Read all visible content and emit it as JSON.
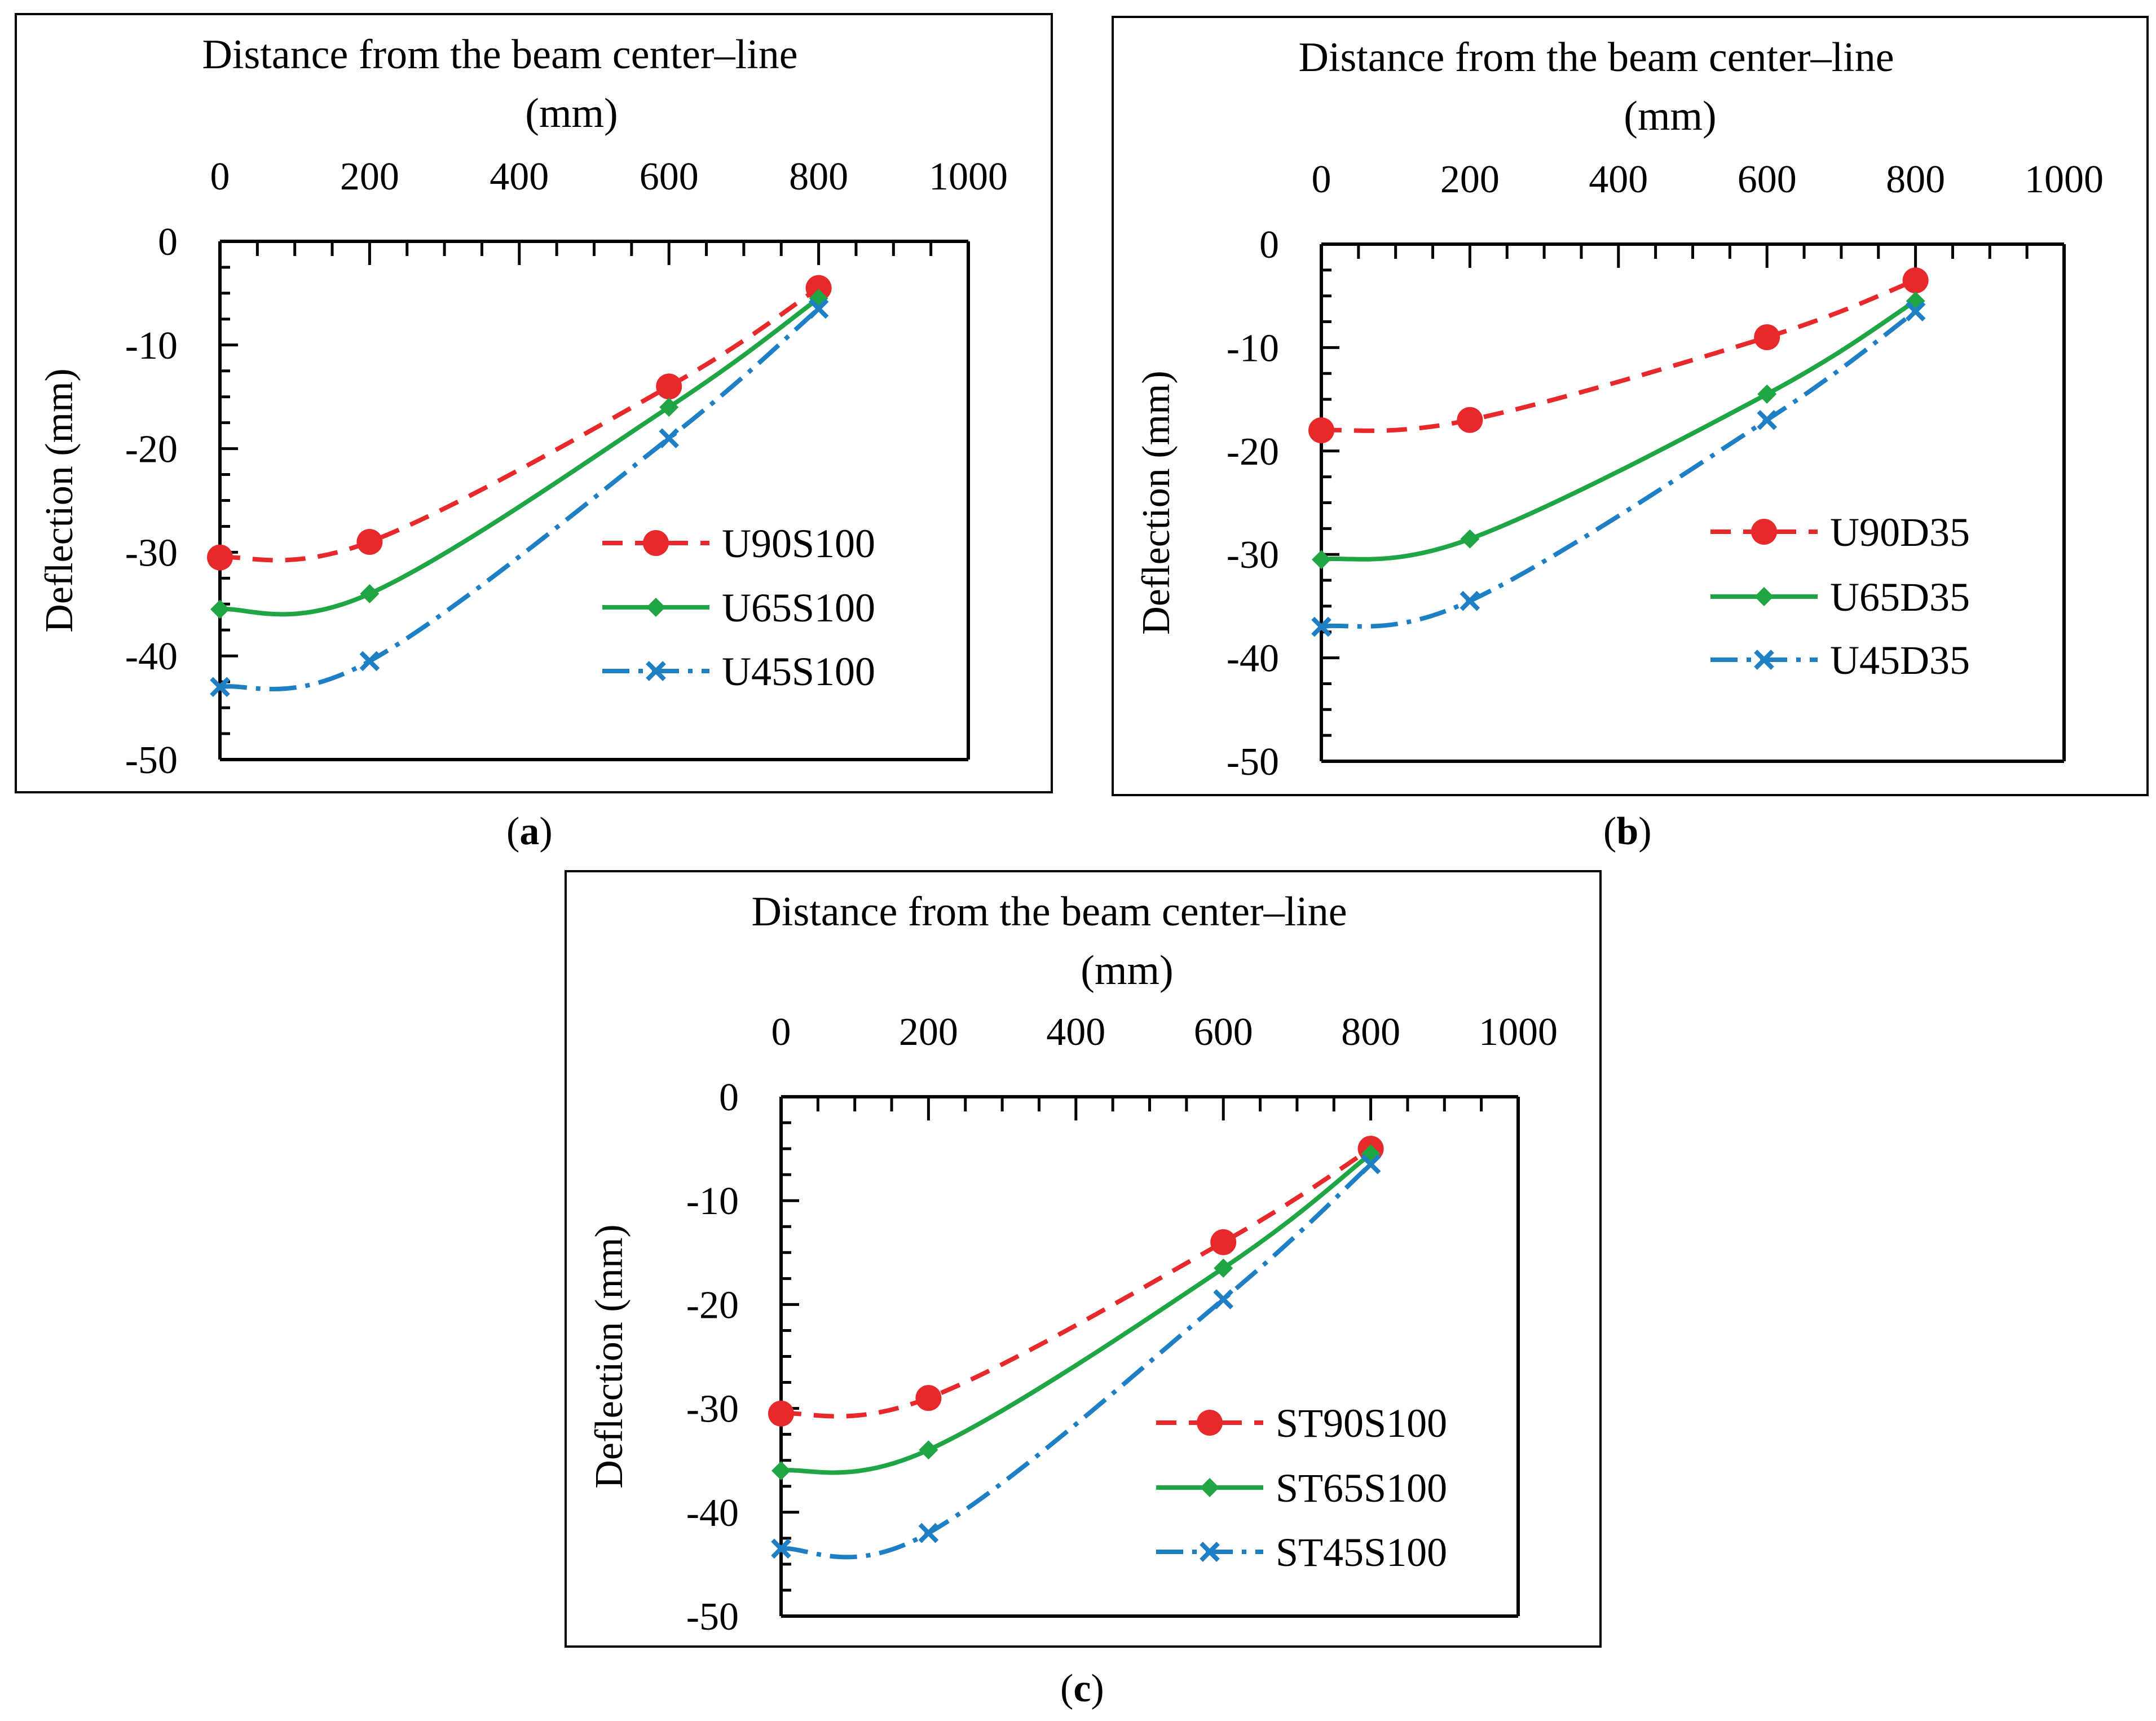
{
  "panel_labels": [
    "a",
    "b",
    "c"
  ],
  "chart_data": [
    {
      "type": "line",
      "panel": "a",
      "xlabel_line1": "Distance from the beam center–line",
      "xlabel_line2": "(mm)",
      "ylabel": "Deflection (mm)",
      "xlim": [
        0,
        1000
      ],
      "ylim": [
        -50,
        0
      ],
      "x_ticks": [
        "0",
        "200",
        "400",
        "600",
        "800",
        "1000"
      ],
      "y_ticks": [
        "0",
        "-10",
        "-20",
        "-30",
        "-40",
        "-50"
      ],
      "x_axis_position": "top",
      "legend_position": "right",
      "grid": false,
      "x": [
        0,
        200,
        600,
        800
      ],
      "series": [
        {
          "name": "U90S100",
          "values": [
            -30.5,
            -29,
            -14,
            -4.5
          ],
          "color": "#e8292b",
          "dash": "dashed",
          "marker": "circle"
        },
        {
          "name": "U65S100",
          "values": [
            -35.5,
            -34,
            -16,
            -5.5
          ],
          "color": "#1fa543",
          "dash": "solid",
          "marker": "diamond"
        },
        {
          "name": "U45S100",
          "values": [
            -43,
            -40.5,
            -19,
            -6.5
          ],
          "color": "#1f7fc4",
          "dash": "dashdot",
          "marker": "x"
        }
      ]
    },
    {
      "type": "line",
      "panel": "b",
      "xlabel_line1": "Distance from the beam center–line",
      "xlabel_line2": "(mm)",
      "ylabel": "Deflection (mm)",
      "xlim": [
        0,
        1000
      ],
      "ylim": [
        -50,
        0
      ],
      "x_ticks": [
        "0",
        "200",
        "400",
        "600",
        "800",
        "1000"
      ],
      "y_ticks": [
        "0",
        "-10",
        "-20",
        "-30",
        "-40",
        "-50"
      ],
      "x_axis_position": "top",
      "legend_position": "right",
      "grid": false,
      "x": [
        0,
        200,
        600,
        800
      ],
      "series": [
        {
          "name": "U90D35",
          "values": [
            -18,
            -17,
            -9,
            -3.5
          ],
          "color": "#e8292b",
          "dash": "dashed",
          "marker": "circle"
        },
        {
          "name": "U65D35",
          "values": [
            -30.5,
            -28.5,
            -14.5,
            -5.5
          ],
          "color": "#1fa543",
          "dash": "solid",
          "marker": "diamond"
        },
        {
          "name": "U45D35",
          "values": [
            -37,
            -34.5,
            -17,
            -6.5
          ],
          "color": "#1f7fc4",
          "dash": "dashdot",
          "marker": "x"
        }
      ]
    },
    {
      "type": "line",
      "panel": "c",
      "xlabel_line1": "Distance from the beam center–line",
      "xlabel_line2": "(mm)",
      "ylabel": "Deflection (mm)",
      "xlim": [
        0,
        1000
      ],
      "ylim": [
        -50,
        0
      ],
      "x_ticks": [
        "0",
        "200",
        "400",
        "600",
        "800",
        "1000"
      ],
      "y_ticks": [
        "0",
        "-10",
        "-20",
        "-30",
        "-40",
        "-50"
      ],
      "x_axis_position": "top",
      "legend_position": "right",
      "grid": false,
      "x": [
        0,
        200,
        600,
        800
      ],
      "series": [
        {
          "name": "ST90S100",
          "values": [
            -30.5,
            -29,
            -14,
            -5
          ],
          "color": "#e8292b",
          "dash": "dashed",
          "marker": "circle"
        },
        {
          "name": "ST65S100",
          "values": [
            -36,
            -34,
            -16.5,
            -5.5
          ],
          "color": "#1fa543",
          "dash": "solid",
          "marker": "diamond"
        },
        {
          "name": "ST45S100",
          "values": [
            -43.5,
            -42,
            -19.5,
            -6.5
          ],
          "color": "#1f7fc4",
          "dash": "dashdot",
          "marker": "x"
        }
      ]
    }
  ]
}
